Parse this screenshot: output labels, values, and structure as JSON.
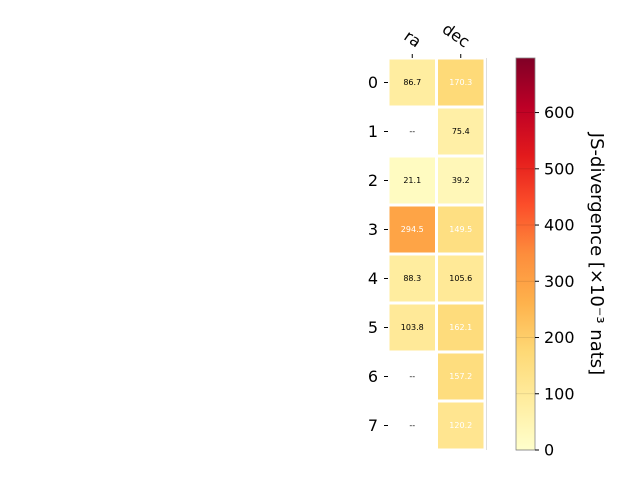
{
  "chart_data": {
    "type": "heatmap",
    "columns": [
      "ra",
      "dec"
    ],
    "rows": [
      "0",
      "1",
      "2",
      "3",
      "4",
      "5",
      "6",
      "7"
    ],
    "values": [
      [
        86.7,
        170.3
      ],
      [
        null,
        75.4
      ],
      [
        21.1,
        39.2
      ],
      [
        294.5,
        149.5
      ],
      [
        88.3,
        105.6
      ],
      [
        103.8,
        162.1
      ],
      [
        null,
        157.2
      ],
      [
        null,
        120.2
      ]
    ],
    "cell_labels": [
      [
        "86.7",
        "170.3"
      ],
      [
        "--",
        "75.4"
      ],
      [
        "21.1",
        "39.2"
      ],
      [
        "294.5",
        "149.5"
      ],
      [
        "88.3",
        "105.6"
      ],
      [
        "103.8",
        "162.1"
      ],
      [
        "--",
        "157.2"
      ],
      [
        "--",
        "120.2"
      ]
    ],
    "missing_label": "--",
    "colormap": "YlOrRd",
    "colorbar": {
      "label": "JS-divergence [×10⁻³ nats]",
      "range": [
        0,
        697
      ],
      "ticks": [
        0,
        100,
        200,
        300,
        400,
        500,
        600
      ],
      "tick_labels": [
        "0",
        "100",
        "200",
        "300",
        "400",
        "500",
        "600"
      ]
    },
    "colors": {
      "missing": "#ffffff",
      "grid": "#ffffff"
    }
  }
}
